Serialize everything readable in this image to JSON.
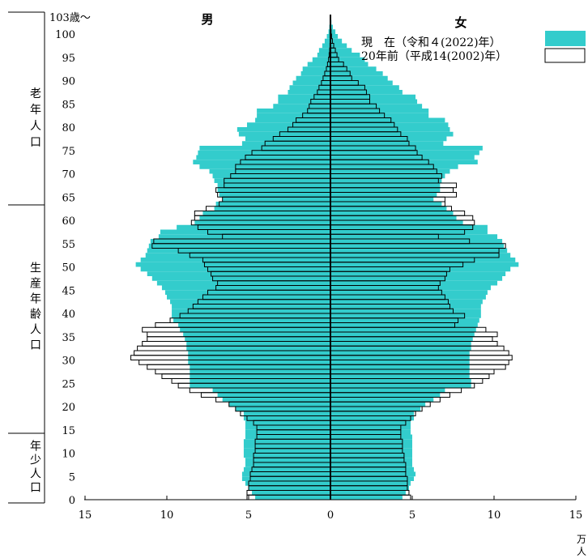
{
  "chart_data": {
    "type": "bar",
    "orientation": "horizontal-population-pyramid",
    "age_top_label": "103歳～",
    "age_ticks": [
      "0",
      "5",
      "10",
      "15",
      "20",
      "25",
      "30",
      "35",
      "40",
      "45",
      "50",
      "55",
      "60",
      "65",
      "70",
      "75",
      "80",
      "85",
      "90",
      "95",
      "100"
    ],
    "x_ticks": [
      "15",
      "10",
      "5",
      "0",
      "5",
      "10",
      "15"
    ],
    "unit_label": "万人",
    "xlim": [
      0,
      15
    ],
    "sex_labels": {
      "male": "男",
      "female": "女"
    },
    "age_groups": [
      {
        "label": "老年人口",
        "from_age": 65,
        "to_age": 103
      },
      {
        "label": "生産年齢人口",
        "from_age": 15,
        "to_age": 65
      },
      {
        "label": "年少人口",
        "from_age": 0,
        "to_age": 15
      }
    ],
    "colors": {
      "current": "#33cccc",
      "past": "#ffffff",
      "outline": "#000000"
    },
    "series": [
      {
        "name": "現　在（令和４(2022)年）",
        "male": [
          4.6,
          4.8,
          5.0,
          5.2,
          5.4,
          5.4,
          5.3,
          5.2,
          5.2,
          5.3,
          5.3,
          5.3,
          5.3,
          5.2,
          5.2,
          5.2,
          5.2,
          5.3,
          5.3,
          5.8,
          6.2,
          6.6,
          6.9,
          7.2,
          8.6,
          8.6,
          8.6,
          8.6,
          8.6,
          8.7,
          8.7,
          8.7,
          8.8,
          8.8,
          8.9,
          9.0,
          9.2,
          9.3,
          9.6,
          9.7,
          9.7,
          9.7,
          9.8,
          10.0,
          10.1,
          10.3,
          10.6,
          10.9,
          11.2,
          11.6,
          11.9,
          11.6,
          11.3,
          11.2,
          11.1,
          11.0,
          10.5,
          10.4,
          9.4,
          8.3,
          8.0,
          7.8,
          7.1,
          7.0,
          6.6,
          6.8,
          6.9,
          6.9,
          7.1,
          7.2,
          7.4,
          8.0,
          8.4,
          8.2,
          8.1,
          8.0,
          5.4,
          5.2,
          5.6,
          5.7,
          5.1,
          4.6,
          4.5,
          4.5,
          3.5,
          3.2,
          3.2,
          2.6,
          2.5,
          2.3,
          2.1,
          1.8,
          1.7,
          1.4,
          1.1,
          0.8,
          0.7,
          0.5,
          0.35,
          0.22,
          0.12,
          0.07,
          0.04,
          0.02
        ],
        "female": [
          4.4,
          4.6,
          4.8,
          4.9,
          5.1,
          5.2,
          5.1,
          5.0,
          5.0,
          5.0,
          5.0,
          5.0,
          5.0,
          5.0,
          4.9,
          4.9,
          4.9,
          5.1,
          5.1,
          5.5,
          5.8,
          6.3,
          6.7,
          7.0,
          8.6,
          8.6,
          8.5,
          8.5,
          8.5,
          8.5,
          8.5,
          8.5,
          8.6,
          8.6,
          8.7,
          8.8,
          8.9,
          9.0,
          9.1,
          9.2,
          9.2,
          9.2,
          9.3,
          9.5,
          9.6,
          9.8,
          10.2,
          10.5,
          10.7,
          11.0,
          11.5,
          11.3,
          11.0,
          10.8,
          10.6,
          10.5,
          10.2,
          9.6,
          9.6,
          8.1,
          7.7,
          7.5,
          7.1,
          6.8,
          6.3,
          6.5,
          6.7,
          6.7,
          6.8,
          7.0,
          7.3,
          7.8,
          9.0,
          8.8,
          9.1,
          9.3,
          6.9,
          7.1,
          7.5,
          7.3,
          7.2,
          7.0,
          6.0,
          6.0,
          5.6,
          5.3,
          5.2,
          4.4,
          4.2,
          3.8,
          3.5,
          3.2,
          2.8,
          2.3,
          2.1,
          1.8,
          1.3,
          1.0,
          0.7,
          0.45,
          0.3,
          0.15,
          0.06,
          0.03
        ]
      },
      {
        "name": "20年前（平成14(2002)年）",
        "male": [
          5.1,
          5.1,
          5.0,
          5.0,
          4.9,
          4.9,
          4.8,
          4.7,
          4.7,
          4.7,
          4.6,
          4.6,
          4.6,
          4.5,
          4.5,
          4.5,
          4.7,
          5.1,
          5.5,
          5.8,
          6.2,
          7.0,
          7.9,
          8.6,
          9.3,
          9.7,
          10.3,
          10.7,
          11.2,
          11.7,
          12.2,
          12.0,
          11.8,
          11.5,
          11.2,
          11.2,
          11.5,
          10.7,
          9.8,
          9.2,
          8.7,
          8.4,
          8.1,
          7.8,
          7.5,
          7.0,
          6.9,
          7.2,
          7.3,
          7.5,
          7.7,
          7.8,
          8.6,
          9.3,
          10.9,
          10.8,
          6.6,
          7.5,
          8.1,
          8.5,
          8.3,
          8.3,
          7.6,
          6.8,
          6.6,
          6.9,
          7.0,
          6.5,
          6.5,
          6.1,
          5.8,
          5.8,
          5.5,
          5.2,
          4.8,
          4.2,
          4.0,
          3.5,
          3.1,
          2.6,
          2.3,
          2.1,
          1.7,
          1.4,
          1.3,
          1.2,
          1.0,
          0.8,
          0.7,
          0.55,
          0.45,
          0.35,
          0.25,
          0.18,
          0.12,
          0.08,
          0.05,
          0.03,
          0.02,
          0.01,
          0.01,
          0.0,
          0.0,
          0.0
        ],
        "female": [
          4.9,
          4.8,
          4.7,
          4.7,
          4.7,
          4.6,
          4.6,
          4.6,
          4.5,
          4.5,
          4.4,
          4.4,
          4.4,
          4.3,
          4.3,
          4.3,
          4.6,
          4.9,
          5.2,
          5.6,
          6.1,
          6.7,
          7.3,
          8.0,
          8.8,
          9.3,
          9.7,
          10.0,
          10.7,
          10.9,
          11.1,
          10.9,
          10.6,
          10.2,
          9.9,
          10.2,
          9.5,
          7.6,
          7.8,
          8.2,
          7.5,
          7.3,
          7.2,
          7.0,
          6.8,
          6.6,
          6.7,
          7.0,
          7.1,
          7.3,
          8.1,
          8.8,
          10.3,
          10.3,
          10.7,
          8.5,
          6.6,
          8.2,
          8.7,
          8.8,
          8.7,
          8.2,
          7.4,
          7.0,
          7.0,
          7.7,
          7.5,
          7.7,
          6.6,
          6.8,
          6.5,
          6.3,
          6.0,
          5.6,
          5.3,
          5.2,
          4.8,
          4.7,
          4.3,
          4.1,
          3.9,
          3.7,
          3.3,
          3.0,
          2.8,
          2.4,
          2.4,
          2.2,
          2.1,
          1.7,
          1.3,
          1.2,
          1.0,
          0.8,
          0.5,
          0.4,
          0.3,
          0.2,
          0.12,
          0.07,
          0.04,
          0.02,
          0.01,
          0.0
        ]
      }
    ]
  }
}
